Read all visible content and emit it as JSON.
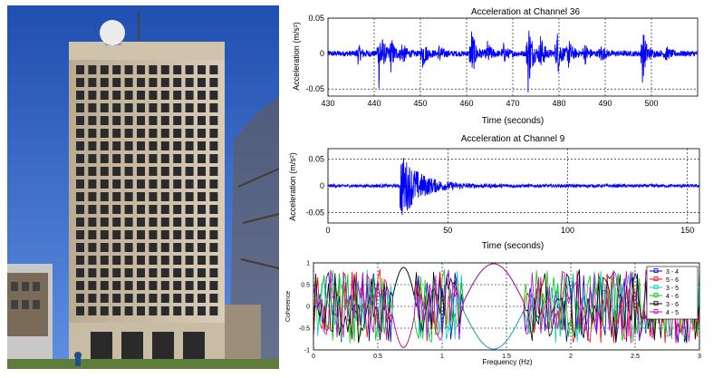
{
  "photo": {
    "subject": "building-photo"
  },
  "chart_data": [
    {
      "type": "line",
      "title": "Acceleration at Channel 36",
      "xlabel": "Time (seconds)",
      "ylabel": "Acceleration (m/s²)",
      "xlim": [
        430,
        510
      ],
      "ylim": [
        -0.06,
        0.05
      ],
      "xticks": [
        430,
        440,
        450,
        460,
        470,
        480,
        490,
        500
      ],
      "yticks": [
        0.05,
        0,
        -0.05
      ],
      "grid": true,
      "series": [
        {
          "color": "#0000ff",
          "baseline_amplitude": 0.004,
          "bursts": [
            {
              "t": 436.5,
              "amp": 0.012
            },
            {
              "t": 441.0,
              "amp": 0.05
            },
            {
              "t": 443.5,
              "amp": 0.025
            },
            {
              "t": 446.0,
              "amp": 0.015
            },
            {
              "t": 450.5,
              "amp": 0.02
            },
            {
              "t": 454.0,
              "amp": 0.012
            },
            {
              "t": 461.0,
              "amp": 0.04
            },
            {
              "t": 464.5,
              "amp": 0.015
            },
            {
              "t": 468.0,
              "amp": 0.012
            },
            {
              "t": 473.3,
              "amp": 0.055
            },
            {
              "t": 476.0,
              "amp": 0.025
            },
            {
              "t": 479.5,
              "amp": 0.035
            },
            {
              "t": 482.0,
              "amp": 0.02
            },
            {
              "t": 485.5,
              "amp": 0.015
            },
            {
              "t": 489.0,
              "amp": 0.012
            },
            {
              "t": 498.0,
              "amp": 0.04
            },
            {
              "t": 503.0,
              "amp": 0.01
            }
          ]
        }
      ]
    },
    {
      "type": "line",
      "title": "Acceleration at Channel 9",
      "xlabel": "Time (seconds)",
      "ylabel": "Acceleration (m/s²)",
      "xlim": [
        0,
        155
      ],
      "ylim": [
        -0.07,
        0.07
      ],
      "xticks": [
        0,
        50,
        100,
        150
      ],
      "yticks": [
        0.05,
        0,
        -0.05
      ],
      "grid": true,
      "series": [
        {
          "color": "#0000ff",
          "baseline_amplitude": 0.003,
          "impulse": {
            "t": 30,
            "amp": 0.065,
            "decay": 8
          }
        }
      ]
    },
    {
      "type": "line",
      "title": "",
      "xlabel": "Frequency (Hz)",
      "ylabel": "Coherence",
      "xlim": [
        0,
        3
      ],
      "ylim": [
        -1,
        1
      ],
      "xticks": [
        0,
        0.5,
        1,
        1.5,
        2,
        2.5,
        3
      ],
      "yticks": [
        1,
        0.5,
        0,
        -0.5,
        -1
      ],
      "grid": true,
      "legend": "top-right",
      "series": [
        {
          "name": "3 - 4",
          "color": "#0000cc",
          "marker": "square"
        },
        {
          "name": "5 - 6",
          "color": "#ff0000",
          "marker": "diamond"
        },
        {
          "name": "3 - 5",
          "color": "#00cccc",
          "marker": "x"
        },
        {
          "name": "4 - 6",
          "color": "#00cc00",
          "marker": "plus"
        },
        {
          "name": "3 - 6",
          "color": "#000000",
          "marker": "plus"
        },
        {
          "name": "4 - 5",
          "color": "#cc00cc",
          "marker": "square"
        }
      ]
    }
  ]
}
